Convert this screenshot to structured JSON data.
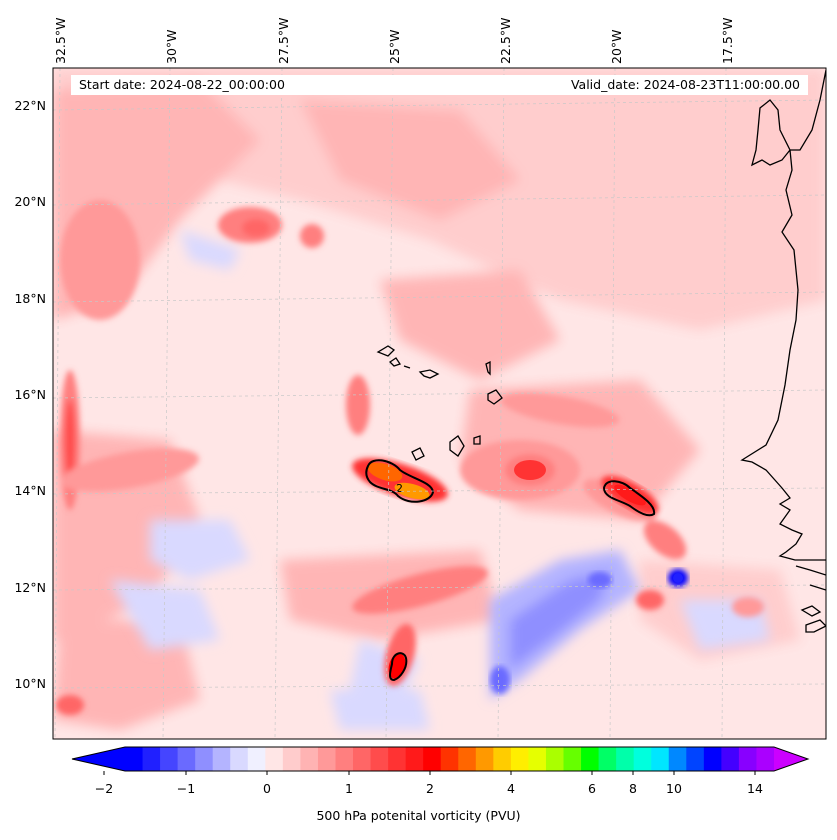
{
  "map": {
    "longitude_labels": [
      "32.5°W",
      "30°W",
      "27.5°W",
      "25°W",
      "22.5°W",
      "20°W",
      "17.5°W"
    ],
    "latitude_labels": [
      "22°N",
      "20°N",
      "18°N",
      "16°N",
      "14°N",
      "12°N",
      "10°N"
    ],
    "start_date": "Start date: 2024-08-22_00:00:00",
    "valid_date": "Valid_date: 2024-08-23T11:00:00.00",
    "contour_label": "2"
  },
  "colorbar": {
    "title": "500 hPa potenital vorticity (PVU)",
    "tick_labels": [
      "−2",
      "−1",
      "0",
      "1",
      "2",
      "4",
      "6",
      "8",
      "10",
      "14"
    ],
    "colors": [
      "#0000ff",
      "#2020ff",
      "#4545ff",
      "#6a6aff",
      "#8f8fff",
      "#b4b4ff",
      "#d9d9ff",
      "#f0f0ff",
      "#ffe6e6",
      "#ffcccc",
      "#ffb3b3",
      "#ff9999",
      "#ff7f7f",
      "#ff6666",
      "#ff4c4c",
      "#ff3333",
      "#ff1a1a",
      "#ff0000",
      "#ff3300",
      "#ff6600",
      "#ff9900",
      "#ffcc00",
      "#ffee00",
      "#e6ff00",
      "#aaff00",
      "#66ff00",
      "#00ff00",
      "#00ff66",
      "#00ffaa",
      "#00ffdd",
      "#00e6ff",
      "#0088ff",
      "#0044ff",
      "#0000ff",
      "#4400ff",
      "#8800ff",
      "#aa00ff"
    ],
    "under_color": "#0000ff",
    "over_color": "#cc00ff"
  }
}
